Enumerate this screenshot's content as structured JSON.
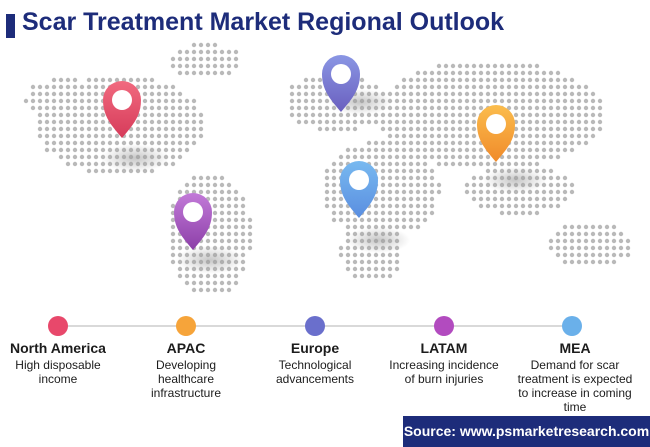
{
  "header": {
    "title": "Scar Treatment Market Regional Outlook",
    "accent_color": "#1d2c7a"
  },
  "map": {
    "icon": "world-map-dotted",
    "markers": [
      {
        "icon": "location-pin-icon",
        "color_top": "#f16a7f",
        "color_bottom": "#d63b5a"
      },
      {
        "icon": "location-pin-icon",
        "color_top": "#c27ad8",
        "color_bottom": "#8c3fa8"
      },
      {
        "icon": "location-pin-icon",
        "color_top": "#8a96e4",
        "color_bottom": "#6a5fbf"
      },
      {
        "icon": "location-pin-icon",
        "color_top": "#78b9f0",
        "color_bottom": "#5a8ee0"
      },
      {
        "icon": "location-pin-icon",
        "color_top": "#fbbd4d",
        "color_bottom": "#f08a2a"
      }
    ]
  },
  "regions": [
    {
      "name": "North America",
      "desc": [
        "High disposable",
        "income"
      ],
      "color": "#e8486b"
    },
    {
      "name": "APAC",
      "desc": [
        "Developing",
        "healthcare",
        "infrastructure"
      ],
      "color": "#f6a43a"
    },
    {
      "name": "Europe",
      "desc": [
        "Technological",
        "advancements"
      ],
      "color": "#6a6fcc"
    },
    {
      "name": "LATAM",
      "desc": [
        "Increasing incidence",
        "of burn injuries"
      ],
      "color": "#b24bbf"
    },
    {
      "name": "MEA",
      "desc": [
        "Demand for scar",
        "treatment is expected",
        "to increase in coming",
        "time"
      ],
      "color": "#6ab0ea"
    }
  ],
  "source": {
    "text": "Source: www.psmarketresearch.com"
  }
}
